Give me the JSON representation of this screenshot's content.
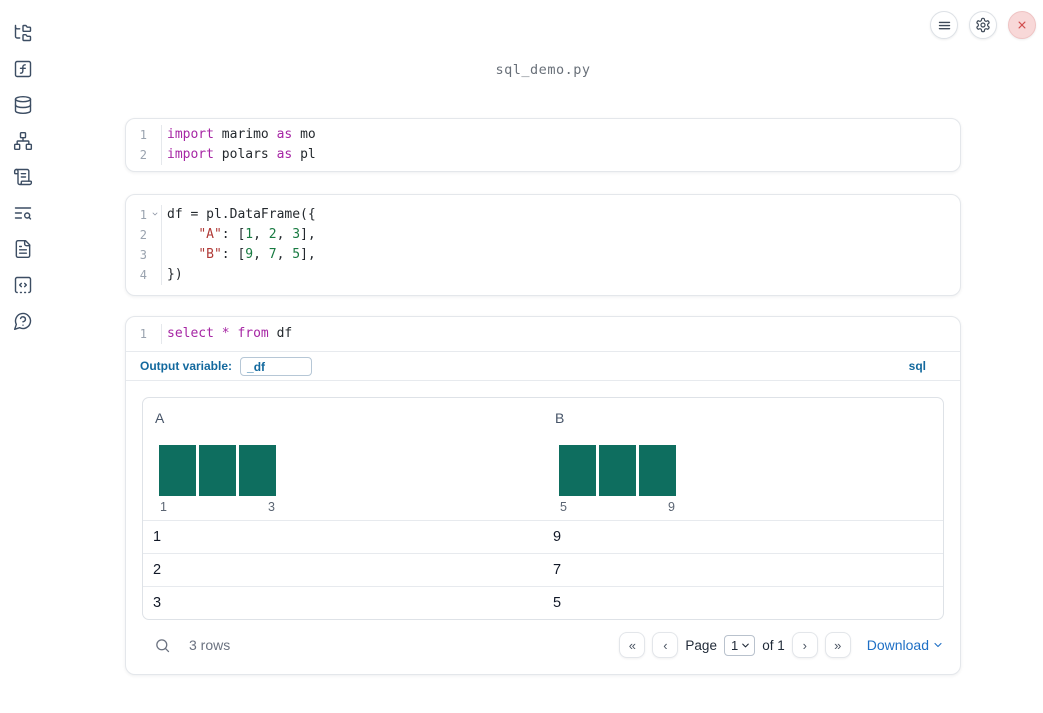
{
  "colors": {
    "keyword": "#a626a4",
    "string": "#b03a37",
    "number": "#187a41",
    "histogram_bar": "#0e6e5f",
    "label_blue": "#13699e",
    "link_blue": "#1e6fc5",
    "close_red": "#d14f4f"
  },
  "title": "sql_demo.py",
  "sidebar": {
    "items": [
      {
        "id": "file-explorer",
        "icon": "folder-tree-icon"
      },
      {
        "id": "variables",
        "icon": "function-square-icon"
      },
      {
        "id": "data-sources",
        "icon": "database-icon"
      },
      {
        "id": "dependencies",
        "icon": "network-icon"
      },
      {
        "id": "scratchpad",
        "icon": "scroll-text-icon"
      },
      {
        "id": "logs",
        "icon": "list-search-icon"
      },
      {
        "id": "documentation",
        "icon": "file-text-icon"
      },
      {
        "id": "snippets",
        "icon": "code-square-icon"
      },
      {
        "id": "help",
        "icon": "help-circle-icon"
      }
    ]
  },
  "header_actions": {
    "menu": "menu-icon",
    "settings": "gear-icon",
    "shutdown": "close-icon"
  },
  "cells": [
    {
      "lines": [
        {
          "n": "1",
          "tokens": [
            {
              "c": "kw",
              "t": "import"
            },
            {
              "c": "pl",
              "t": " marimo "
            },
            {
              "c": "kw",
              "t": "as"
            },
            {
              "c": "pl",
              "t": " mo"
            }
          ]
        },
        {
          "n": "2",
          "tokens": [
            {
              "c": "kw",
              "t": "import"
            },
            {
              "c": "pl",
              "t": " polars "
            },
            {
              "c": "kw",
              "t": "as"
            },
            {
              "c": "pl",
              "t": " pl"
            }
          ]
        }
      ]
    },
    {
      "lines": [
        {
          "n": "1",
          "tokens": [
            {
              "c": "pl",
              "t": "df = pl.DataFrame({"
            }
          ]
        },
        {
          "n": "2",
          "tokens": [
            {
              "c": "pl",
              "t": "    "
            },
            {
              "c": "str",
              "t": "\"A\""
            },
            {
              "c": "pl",
              "t": ": ["
            },
            {
              "c": "num",
              "t": "1"
            },
            {
              "c": "pl",
              "t": ", "
            },
            {
              "c": "num",
              "t": "2"
            },
            {
              "c": "pl",
              "t": ", "
            },
            {
              "c": "num",
              "t": "3"
            },
            {
              "c": "pl",
              "t": "],"
            }
          ]
        },
        {
          "n": "3",
          "tokens": [
            {
              "c": "pl",
              "t": "    "
            },
            {
              "c": "str",
              "t": "\"B\""
            },
            {
              "c": "pl",
              "t": ": ["
            },
            {
              "c": "num",
              "t": "9"
            },
            {
              "c": "pl",
              "t": ", "
            },
            {
              "c": "num",
              "t": "7"
            },
            {
              "c": "pl",
              "t": ", "
            },
            {
              "c": "num",
              "t": "5"
            },
            {
              "c": "pl",
              "t": "],"
            }
          ]
        },
        {
          "n": "4",
          "tokens": [
            {
              "c": "pl",
              "t": "})"
            }
          ]
        }
      ]
    },
    {
      "lines": [
        {
          "n": "1",
          "tokens": [
            {
              "c": "kw",
              "t": "select"
            },
            {
              "c": "pl",
              "t": " "
            },
            {
              "c": "kw",
              "t": "*"
            },
            {
              "c": "pl",
              "t": " "
            },
            {
              "c": "kw",
              "t": "from"
            },
            {
              "c": "pl",
              "t": " df"
            }
          ]
        }
      ]
    }
  ],
  "sql_cell": {
    "output_variable_label": "Output variable:",
    "output_variable_value": "_df",
    "language_badge": "sql"
  },
  "table": {
    "columns": [
      {
        "name": "A",
        "hist": {
          "bins": 3,
          "min_label": "1",
          "max_label": "3"
        }
      },
      {
        "name": "B",
        "hist": {
          "bins": 3,
          "min_label": "5",
          "max_label": "9"
        }
      }
    ],
    "rows": [
      [
        "1",
        "9"
      ],
      [
        "2",
        "7"
      ],
      [
        "3",
        "5"
      ]
    ],
    "footer": {
      "row_count": "3 rows",
      "pagination": {
        "first": "«",
        "prev": "‹",
        "page_label": "Page",
        "page_value": "1",
        "of_label": "of",
        "total_pages": "1",
        "next": "›",
        "last": "»"
      },
      "download_label": "Download"
    }
  }
}
